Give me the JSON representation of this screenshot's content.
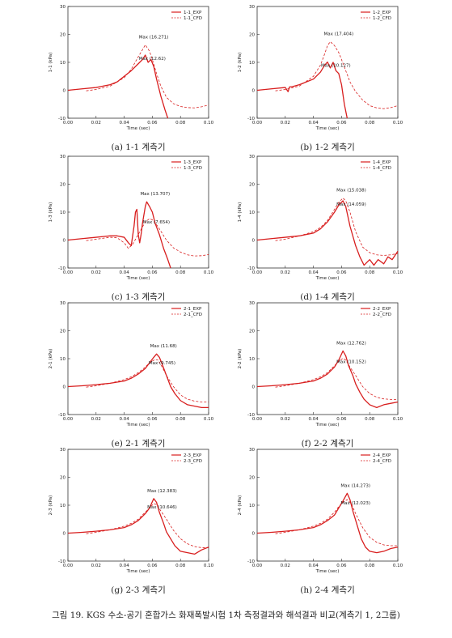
{
  "figure_caption": "그림 19. KGS 수소-공기 혼합가스 화재폭발시험 1차 측정결과와 해석결과 비교(계측기 1, 2그룹)",
  "colors": {
    "series": "#d81e1e",
    "axis": "#333333"
  },
  "chart_data": [
    {
      "type": "line",
      "caption": "(a) 1-1 계측기",
      "xlabel": "Time (sec)",
      "ylabel": "1-1 (kPa)",
      "xlim": [
        0,
        0.1
      ],
      "ylim": [
        -10,
        30
      ],
      "xticks": [
        "0.00",
        "0.02",
        "0.04",
        "0.06",
        "0.08",
        "0.10"
      ],
      "yticks": [
        "-10",
        "0",
        "10",
        "20",
        "30"
      ],
      "legend_position": "top-right",
      "series": [
        {
          "name": "1-1_EXP",
          "style": "solid",
          "x": [
            0,
            0.01,
            0.02,
            0.03,
            0.035,
            0.04,
            0.045,
            0.05,
            0.053,
            0.055,
            0.057,
            0.059,
            0.061,
            0.063,
            0.066,
            0.069,
            0.071
          ],
          "y": [
            0,
            0.5,
            1,
            2,
            3,
            5,
            7,
            9.5,
            11,
            12.6,
            10,
            11,
            8.5,
            4,
            -2,
            -7,
            -10
          ]
        },
        {
          "name": "1-1_CFD",
          "style": "dashed",
          "x": [
            0.013,
            0.02,
            0.03,
            0.04,
            0.045,
            0.05,
            0.053,
            0.055,
            0.058,
            0.06,
            0.063,
            0.066,
            0.07,
            0.075,
            0.08,
            0.085,
            0.09,
            0.095,
            0.1
          ],
          "y": [
            -0.2,
            0.3,
            1.5,
            4.5,
            7.5,
            12,
            14.5,
            16.27,
            14,
            11,
            6,
            1.5,
            -2.5,
            -4.8,
            -5.8,
            -6.2,
            -6.3,
            -5.9,
            -5.3
          ]
        }
      ],
      "annotations": [
        {
          "text": "Max (16.271)",
          "x": 0.055,
          "y": 16.271
        },
        {
          "text": "Max (12.62)",
          "x": 0.055,
          "y": 12.62
        }
      ]
    },
    {
      "type": "line",
      "caption": "(b) 1-2 계측기",
      "xlabel": "Time (sec)",
      "ylabel": "1-2 (kPa)",
      "xlim": [
        0,
        0.1
      ],
      "ylim": [
        -10,
        30
      ],
      "xticks": [
        "0.00",
        "0.02",
        "0.04",
        "0.06",
        "0.08",
        "0.10"
      ],
      "yticks": [
        "-10",
        "0",
        "10",
        "20",
        "30"
      ],
      "legend_position": "top-right",
      "series": [
        {
          "name": "1-2_EXP",
          "style": "solid",
          "x": [
            0,
            0.01,
            0.02,
            0.022,
            0.023,
            0.025,
            0.03,
            0.04,
            0.045,
            0.048,
            0.05,
            0.052,
            0.054,
            0.056,
            0.058,
            0.06,
            0.062,
            0.064
          ],
          "y": [
            0,
            0.5,
            1,
            -0.5,
            1.2,
            1.3,
            2,
            4,
            6.5,
            9,
            10.1,
            8,
            10,
            7,
            6,
            2,
            -5,
            -10
          ]
        },
        {
          "name": "1-2_CFD",
          "style": "dashed",
          "x": [
            0.013,
            0.02,
            0.03,
            0.04,
            0.045,
            0.048,
            0.05,
            0.052,
            0.055,
            0.058,
            0.06,
            0.063,
            0.066,
            0.07,
            0.075,
            0.08,
            0.085,
            0.09,
            0.095,
            0.1
          ],
          "y": [
            -0.2,
            0.3,
            1.5,
            5,
            9,
            13,
            16,
            17.4,
            16,
            13.5,
            11,
            7,
            3,
            -0.5,
            -3.5,
            -5.5,
            -6.3,
            -6.6,
            -6.2,
            -5.5
          ]
        }
      ],
      "annotations": [
        {
          "text": "Max (17.404)",
          "x": 0.052,
          "y": 17.404
        },
        {
          "text": "Max (10.127)",
          "x": 0.05,
          "y": 10.127
        }
      ]
    },
    {
      "type": "line",
      "caption": "(c) 1-3 계측기",
      "xlabel": "Time (sec)",
      "ylabel": "1-3 (kPa)",
      "xlim": [
        0,
        0.1
      ],
      "ylim": [
        -10,
        30
      ],
      "xticks": [
        "0.00",
        "0.02",
        "0.04",
        "0.06",
        "0.08",
        "0.10"
      ],
      "yticks": [
        "-10",
        "0",
        "10",
        "20",
        "30"
      ],
      "legend_position": "top-right",
      "series": [
        {
          "name": "1-3_EXP",
          "style": "solid",
          "x": [
            0,
            0.01,
            0.02,
            0.03,
            0.035,
            0.04,
            0.043,
            0.045,
            0.047,
            0.048,
            0.049,
            0.05,
            0.051,
            0.052,
            0.053,
            0.054,
            0.055,
            0.056,
            0.058,
            0.06,
            0.062,
            0.065,
            0.068,
            0.071,
            0.073
          ],
          "y": [
            0,
            0.5,
            1,
            1.5,
            1.5,
            1,
            -1,
            -2,
            5,
            10,
            11,
            2,
            -1,
            2,
            6,
            9,
            12,
            13.7,
            12,
            10,
            6,
            2,
            -3,
            -7,
            -10
          ]
        },
        {
          "name": "1-3_CFD",
          "style": "dashed",
          "x": [
            0.013,
            0.02,
            0.03,
            0.035,
            0.04,
            0.043,
            0.046,
            0.05,
            0.055,
            0.058,
            0.061,
            0.065,
            0.07,
            0.075,
            0.08,
            0.085,
            0.09,
            0.095,
            0.1
          ],
          "y": [
            -0.2,
            0.3,
            1,
            0.8,
            -1,
            -3,
            -1.5,
            2,
            6.5,
            7.65,
            7,
            4,
            0,
            -2.8,
            -4.3,
            -5.3,
            -5.7,
            -5.6,
            -5.2
          ]
        }
      ],
      "annotations": [
        {
          "text": "Max (13.707)",
          "x": 0.056,
          "y": 13.707
        },
        {
          "text": "Max (7.654)",
          "x": 0.058,
          "y": 7.654
        }
      ]
    },
    {
      "type": "line",
      "caption": "(d) 1-4 계측기",
      "xlabel": "Time (sec)",
      "ylabel": "1-4 (kPa)",
      "xlim": [
        0,
        0.1
      ],
      "ylim": [
        -10,
        30
      ],
      "xticks": [
        "0.00",
        "0.02",
        "0.04",
        "0.06",
        "0.08",
        "0.10"
      ],
      "yticks": [
        "-10",
        "0",
        "10",
        "20",
        "30"
      ],
      "legend_position": "top-right",
      "series": [
        {
          "name": "1-4_EXP",
          "style": "solid",
          "x": [
            0,
            0.01,
            0.02,
            0.03,
            0.04,
            0.045,
            0.05,
            0.055,
            0.058,
            0.061,
            0.063,
            0.066,
            0.07,
            0.073,
            0.076,
            0.08,
            0.083,
            0.086,
            0.09,
            0.093,
            0.096,
            0.1
          ],
          "y": [
            0,
            0.5,
            1,
            1.5,
            2.5,
            4,
            6.5,
            10,
            12.5,
            14.06,
            12,
            5,
            -2,
            -6,
            -9,
            -7,
            -9,
            -7,
            -8.5,
            -6,
            -7,
            -4
          ]
        },
        {
          "name": "1-4_CFD",
          "style": "dashed",
          "x": [
            0.013,
            0.02,
            0.03,
            0.04,
            0.045,
            0.05,
            0.055,
            0.058,
            0.061,
            0.063,
            0.066,
            0.07,
            0.075,
            0.08,
            0.085,
            0.09,
            0.095,
            0.1
          ],
          "y": [
            -0.2,
            0.3,
            1.5,
            3,
            4.5,
            7,
            11,
            13.5,
            15.04,
            14,
            10,
            3,
            -2.5,
            -4.5,
            -5.3,
            -5.5,
            -5.3,
            -4.8
          ]
        }
      ],
      "annotations": [
        {
          "text": "Max (15.038)",
          "x": 0.061,
          "y": 15.038
        },
        {
          "text": "Max (14.059)",
          "x": 0.061,
          "y": 14.059
        }
      ]
    },
    {
      "type": "line",
      "caption": "(e) 2-1 계측기",
      "xlabel": "Time (sec)",
      "ylabel": "2-1 (kPa)",
      "xlim": [
        0,
        0.1
      ],
      "ylim": [
        -10,
        30
      ],
      "xticks": [
        "0.00",
        "0.02",
        "0.04",
        "0.06",
        "0.08",
        "0.10"
      ],
      "yticks": [
        "-10",
        "0",
        "10",
        "20",
        "30"
      ],
      "legend_position": "top-right",
      "series": [
        {
          "name": "2-1_EXP",
          "style": "solid",
          "x": [
            0,
            0.01,
            0.02,
            0.03,
            0.04,
            0.045,
            0.05,
            0.055,
            0.058,
            0.061,
            0.063,
            0.065,
            0.067,
            0.07,
            0.073,
            0.076,
            0.08,
            0.085,
            0.09,
            0.095,
            0.1
          ],
          "y": [
            0,
            0.3,
            0.7,
            1.2,
            2,
            3,
            4.5,
            6.5,
            8.5,
            10.5,
            11.68,
            10.5,
            8,
            4,
            0,
            -2.5,
            -5,
            -6.5,
            -7,
            -7.5,
            -7.5
          ]
        },
        {
          "name": "2-1_CFD",
          "style": "dashed",
          "x": [
            0.013,
            0.02,
            0.03,
            0.04,
            0.045,
            0.05,
            0.055,
            0.058,
            0.062,
            0.064,
            0.067,
            0.07,
            0.075,
            0.08,
            0.085,
            0.09,
            0.095,
            0.1
          ],
          "y": [
            -0.2,
            0.3,
            1.2,
            2.5,
            3.5,
            5,
            7,
            8.5,
            9.74,
            9.5,
            7,
            4,
            0,
            -3,
            -4.5,
            -5.2,
            -5.5,
            -5.5
          ]
        }
      ],
      "annotations": [
        {
          "text": "Max (11.68)",
          "x": 0.063,
          "y": 11.68
        },
        {
          "text": "Max (9.745)",
          "x": 0.062,
          "y": 9.745
        }
      ]
    },
    {
      "type": "line",
      "caption": "(f) 2-2 계측기",
      "xlabel": "Time (sec)",
      "ylabel": "2-2 (kPa)",
      "xlim": [
        0,
        0.1
      ],
      "ylim": [
        -10,
        30
      ],
      "xticks": [
        "0.00",
        "0.02",
        "0.04",
        "0.06",
        "0.08",
        "0.10"
      ],
      "yticks": [
        "-10",
        "0",
        "10",
        "20",
        "30"
      ],
      "legend_position": "top-right",
      "series": [
        {
          "name": "2-2_EXP",
          "style": "solid",
          "x": [
            0,
            0.01,
            0.02,
            0.03,
            0.04,
            0.045,
            0.05,
            0.055,
            0.058,
            0.061,
            0.063,
            0.065,
            0.068,
            0.07,
            0.073,
            0.076,
            0.08,
            0.085,
            0.09,
            0.095,
            0.1
          ],
          "y": [
            0,
            0.3,
            0.7,
            1.2,
            2,
            3,
            4.5,
            7,
            9.5,
            12.76,
            11,
            7.5,
            4,
            1,
            -2,
            -4.5,
            -6.5,
            -7.5,
            -6.5,
            -6,
            -5.5
          ]
        },
        {
          "name": "2-2_CFD",
          "style": "dashed",
          "x": [
            0.013,
            0.02,
            0.03,
            0.04,
            0.045,
            0.05,
            0.055,
            0.058,
            0.061,
            0.063,
            0.066,
            0.07,
            0.075,
            0.08,
            0.085,
            0.09,
            0.095,
            0.1
          ],
          "y": [
            -0.2,
            0.3,
            1.2,
            2.5,
            3.5,
            5,
            7.5,
            9,
            10.15,
            9.5,
            7,
            4,
            0,
            -2.5,
            -3.8,
            -4.4,
            -4.6,
            -4.6
          ]
        }
      ],
      "annotations": [
        {
          "text": "Max (12.762)",
          "x": 0.061,
          "y": 12.762
        },
        {
          "text": "Max (10.152)",
          "x": 0.061,
          "y": 10.152
        }
      ]
    },
    {
      "type": "line",
      "caption": "(g) 2-3 계측기",
      "xlabel": "Time (sec)",
      "ylabel": "2-3 (kPa)",
      "xlim": [
        0,
        0.1
      ],
      "ylim": [
        -10,
        30
      ],
      "xticks": [
        "0.00",
        "0.02",
        "0.04",
        "0.06",
        "0.08",
        "0.10"
      ],
      "yticks": [
        "-10",
        "0",
        "10",
        "20",
        "30"
      ],
      "legend_position": "top-right",
      "series": [
        {
          "name": "2-3_EXP",
          "style": "solid",
          "x": [
            0,
            0.01,
            0.02,
            0.03,
            0.04,
            0.045,
            0.05,
            0.055,
            0.058,
            0.061,
            0.063,
            0.065,
            0.068,
            0.07,
            0.073,
            0.076,
            0.08,
            0.085,
            0.09,
            0.095,
            0.1
          ],
          "y": [
            0,
            0.3,
            0.7,
            1.2,
            2,
            3,
            4.5,
            7,
            9,
            12.38,
            11,
            7.5,
            3.5,
            0.5,
            -2,
            -4.5,
            -6.5,
            -7,
            -7.5,
            -6,
            -5
          ]
        },
        {
          "name": "2-3_CFD",
          "style": "dashed",
          "x": [
            0.013,
            0.02,
            0.03,
            0.04,
            0.045,
            0.05,
            0.055,
            0.058,
            0.061,
            0.063,
            0.066,
            0.07,
            0.075,
            0.08,
            0.085,
            0.09,
            0.095,
            0.1
          ],
          "y": [
            -0.2,
            0.3,
            1.2,
            2.5,
            3.5,
            5,
            7.5,
            9,
            10.6,
            10.2,
            8,
            5,
            1,
            -2,
            -3.8,
            -4.8,
            -5.2,
            -5.2
          ]
        }
      ],
      "annotations": [
        {
          "text": "Max (12.383)",
          "x": 0.061,
          "y": 12.383
        },
        {
          "text": "Max (10.646)",
          "x": 0.061,
          "y": 10.646
        }
      ]
    },
    {
      "type": "line",
      "caption": "(h) 2-4 계측기",
      "xlabel": "Time (sec)",
      "ylabel": "2-4 (kPa)",
      "xlim": [
        0,
        0.1
      ],
      "ylim": [
        -10,
        30
      ],
      "xticks": [
        "0.00",
        "0.02",
        "0.04",
        "0.06",
        "0.08",
        "0.10"
      ],
      "yticks": [
        "-10",
        "0",
        "10",
        "20",
        "30"
      ],
      "legend_position": "top-right",
      "series": [
        {
          "name": "2-4_EXP",
          "style": "solid",
          "x": [
            0,
            0.01,
            0.02,
            0.03,
            0.04,
            0.045,
            0.05,
            0.055,
            0.058,
            0.061,
            0.064,
            0.066,
            0.068,
            0.071,
            0.074,
            0.077,
            0.08,
            0.085,
            0.09,
            0.095,
            0.1
          ],
          "y": [
            0,
            0.3,
            0.7,
            1.2,
            2,
            3,
            4.5,
            6.5,
            9,
            11.5,
            14.27,
            12,
            8,
            3,
            -2,
            -5,
            -6.5,
            -7,
            -6.5,
            -5.5,
            -5
          ]
        },
        {
          "name": "2-4_CFD",
          "style": "dashed",
          "x": [
            0.013,
            0.02,
            0.03,
            0.04,
            0.045,
            0.05,
            0.055,
            0.058,
            0.061,
            0.064,
            0.067,
            0.07,
            0.075,
            0.08,
            0.085,
            0.09,
            0.095,
            0.1
          ],
          "y": [
            -0.2,
            0.3,
            1.2,
            2.5,
            3.5,
            5,
            7.5,
            9.5,
            11,
            12.02,
            10.5,
            7,
            2,
            -1.5,
            -3.3,
            -4.2,
            -4.5,
            -4.5
          ]
        }
      ],
      "annotations": [
        {
          "text": "Max (14.273)",
          "x": 0.064,
          "y": 14.273
        },
        {
          "text": "Max (12.023)",
          "x": 0.064,
          "y": 12.023
        }
      ]
    }
  ]
}
